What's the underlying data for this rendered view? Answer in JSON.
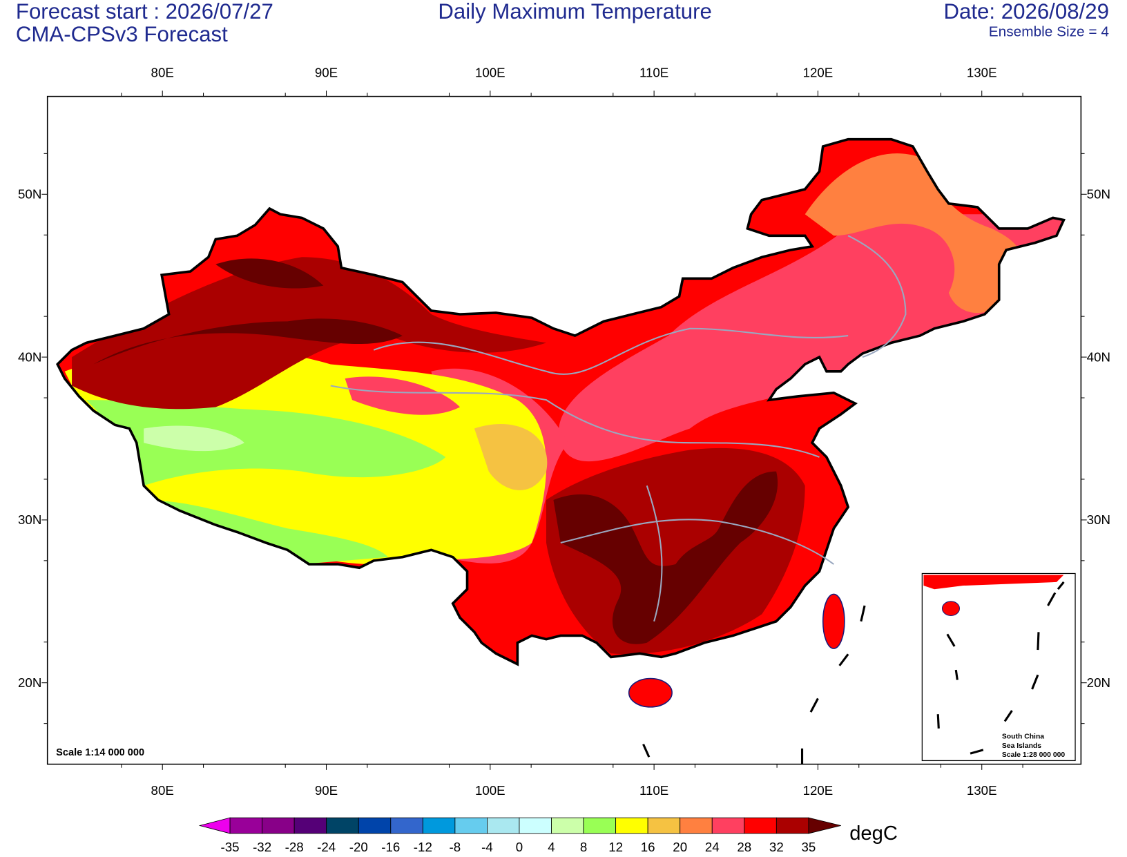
{
  "header": {
    "forecast_start": "Forecast start : 2026/07/27",
    "model": "CMA-CPSv3 Forecast",
    "title": "Daily Maximum Temperature",
    "date": "Date: 2026/08/29",
    "ensemble": "Ensemble Size = 4"
  },
  "map": {
    "xticks": [
      {
        "value": 80,
        "label": "80E"
      },
      {
        "value": 90,
        "label": "90E"
      },
      {
        "value": 100,
        "label": "100E"
      },
      {
        "value": 110,
        "label": "110E"
      },
      {
        "value": 120,
        "label": "120E"
      },
      {
        "value": 130,
        "label": "130E"
      }
    ],
    "yticks": [
      {
        "value": 50,
        "label": "50N"
      },
      {
        "value": 40,
        "label": "40N"
      },
      {
        "value": 30,
        "label": "30N"
      },
      {
        "value": 20,
        "label": "20N"
      }
    ],
    "scale": "Scale 1:14 000 000",
    "inset": {
      "line1": "South China",
      "line2": "Sea Islands",
      "scale": "Scale 1:28 000 000"
    }
  },
  "colorbar": {
    "levels": [
      -35,
      -32,
      -28,
      -24,
      -20,
      -16,
      -12,
      -8,
      -4,
      0,
      4,
      8,
      12,
      16,
      20,
      24,
      28,
      32,
      35
    ],
    "colors": [
      "#ee00ee",
      "#990099",
      "#880088",
      "#550077",
      "#004466",
      "#0044aa",
      "#3366cc",
      "#0099dd",
      "#66ccee",
      "#aae8f0",
      "#ccffff",
      "#ccffaa",
      "#99ff55",
      "#ffff00",
      "#f5c242",
      "#ff8040",
      "#ff4060",
      "#ff0000",
      "#aa0000",
      "#660000"
    ],
    "unit": "degC"
  }
}
